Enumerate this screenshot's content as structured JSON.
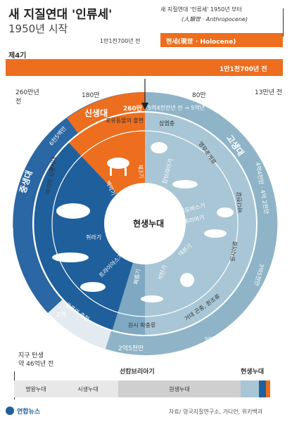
{
  "header": {
    "title": "새 지질연대 '인류세'",
    "subtitle": "1950년 시작",
    "anthropocene_note": "새 지질연대 '인류세' 1950년 부터",
    "anthropocene_hanja": "(人類世 · Anthropocene)",
    "holocene_start": "1만1천700년 전",
    "holocene_label": "현세(現世 · Holocene)",
    "quaternary_label": "제4기",
    "quaternary_end": "1만1천700년 전"
  },
  "timeline": {
    "ticks": [
      "260만년 전",
      "180만",
      "80만",
      "13만년 전"
    ]
  },
  "wheel": {
    "center": "현생누대",
    "cenozoic": "신생대",
    "cenozoic_start": "6천5백만",
    "cenozoic_now": "260만",
    "mesozoic": "중생대",
    "mesozoic_span": "1억4천5백만",
    "paleozoic": "고생대",
    "paleozoic_span": "4억4천만 · 4억 2천만",
    "paleozoic_top": "5억4천만년 전 → 5억년",
    "paleo_bottom": "2억5천만",
    "paleo_right": "3억5천만",
    "mid_left": "2억",
    "mid_right": "3억",
    "periods": [
      "제3기",
      "백악기",
      "쥐라기",
      "트라이아스기",
      "페름기",
      "석탄기",
      "데본기",
      "실루리아기",
      "오르도비스기",
      "캄브리아기"
    ],
    "events": [
      "포유동물의 출현",
      "마지막 공룡시대",
      "공룡의 출현",
      "원시 파충류",
      "거대 곤충, 원조류",
      "원시어류",
      "바다전갈",
      "앵무조개류",
      "삼엽충"
    ]
  },
  "eons": {
    "earth_birth": "지구 탄생",
    "earth_age": "약 46억년 전",
    "precambrian": "선캄브리아기",
    "phanerozoic": "현생누대",
    "items": [
      "명왕누대",
      "시생누대",
      "원생누대"
    ]
  },
  "footer": {
    "logo": "연합뉴스",
    "source": "자료/ 영국지질연구소, 가디언, 위키백과"
  }
}
